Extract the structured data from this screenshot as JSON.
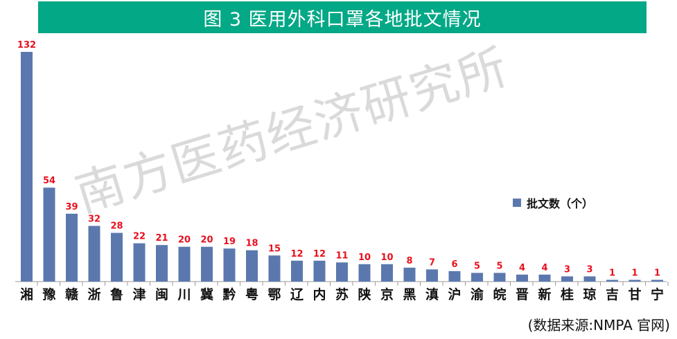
{
  "title": "图 3   医用外科口罩各地批文情况",
  "source": "(数据来源:NMPA 官网)",
  "watermark": "南方医药经济研究所",
  "chart_data": {
    "type": "bar",
    "title": "图 3   医用外科口罩各地批文情况",
    "categories": [
      "湘",
      "豫",
      "赣",
      "浙",
      "鲁",
      "津",
      "闽",
      "川",
      "冀",
      "黔",
      "粤",
      "鄂",
      "辽",
      "内",
      "苏",
      "陕",
      "京",
      "黑",
      "滇",
      "沪",
      "渝",
      "皖",
      "晋",
      "新",
      "桂",
      "琼",
      "吉",
      "甘",
      "宁"
    ],
    "series": [
      {
        "name": "批文数（个）",
        "values": [
          132,
          54,
          39,
          32,
          28,
          22,
          21,
          20,
          20,
          19,
          18,
          15,
          12,
          12,
          11,
          10,
          10,
          8,
          7,
          6,
          5,
          5,
          4,
          4,
          3,
          3,
          1,
          1,
          1
        ]
      }
    ],
    "ylim": [
      0,
      132
    ],
    "xlabel": "",
    "ylabel": "",
    "grid": false,
    "legend_position": "right",
    "colors": {
      "bar": "#5b78ae",
      "label": "#e8101e",
      "title_bg": "#03a886"
    }
  }
}
